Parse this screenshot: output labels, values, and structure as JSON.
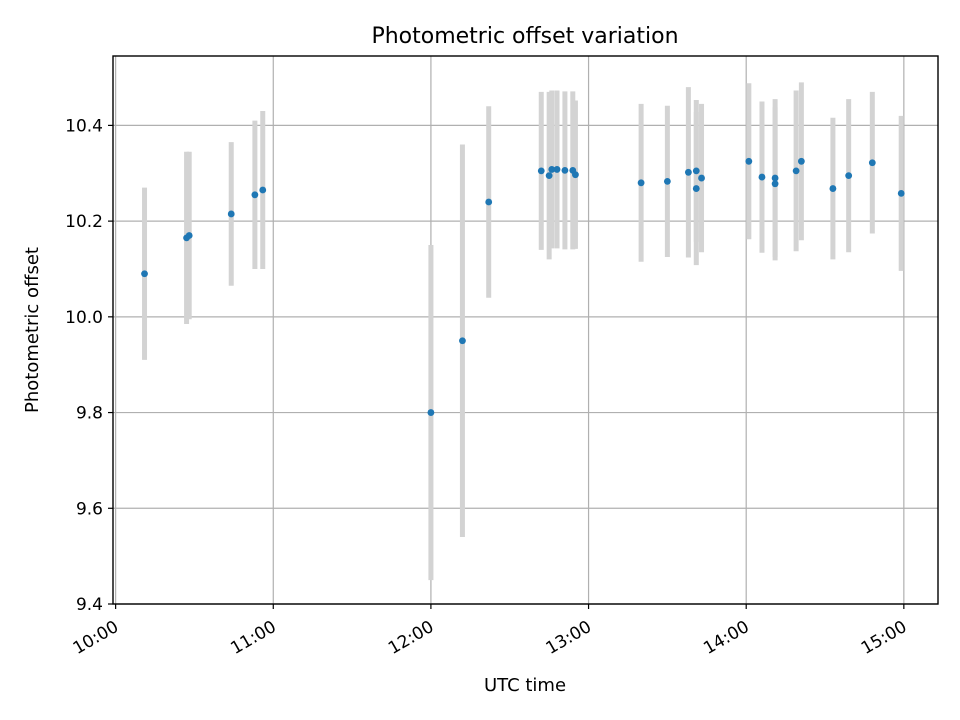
{
  "chart_data": {
    "type": "scatter",
    "title": "Photometric offset variation",
    "xlabel": "UTC time",
    "ylabel": "Photometric offset",
    "xlim": [
      "09:59",
      "15:13"
    ],
    "ylim": [
      9.4,
      10.545
    ],
    "x_ticks": [
      "10:00",
      "11:00",
      "12:00",
      "13:00",
      "14:00",
      "15:00"
    ],
    "y_ticks": [
      9.4,
      9.6,
      9.8,
      10.0,
      10.2,
      10.4
    ],
    "grid": true,
    "legend": "none",
    "colors": {
      "points": "#1f77b4",
      "error_bars": "#d3d3d3",
      "grid": "#b0b0b0"
    },
    "points": [
      {
        "x": "10:11",
        "y": 10.09,
        "err": 0.18
      },
      {
        "x": "10:27",
        "y": 10.165,
        "err": 0.18
      },
      {
        "x": "10:28",
        "y": 10.17,
        "err": 0.175
      },
      {
        "x": "10:44",
        "y": 10.215,
        "err": 0.15
      },
      {
        "x": "10:53",
        "y": 10.255,
        "err": 0.155
      },
      {
        "x": "10:56",
        "y": 10.265,
        "err": 0.165
      },
      {
        "x": "12:00",
        "y": 9.8,
        "err": 0.35
      },
      {
        "x": "12:12",
        "y": 9.95,
        "err": 0.41
      },
      {
        "x": "12:22",
        "y": 10.24,
        "err": 0.2
      },
      {
        "x": "12:42",
        "y": 10.305,
        "err": 0.165
      },
      {
        "x": "12:45",
        "y": 10.295,
        "err": 0.175
      },
      {
        "x": "12:46",
        "y": 10.308,
        "err": 0.165
      },
      {
        "x": "12:48",
        "y": 10.308,
        "err": 0.165
      },
      {
        "x": "12:51",
        "y": 10.306,
        "err": 0.165
      },
      {
        "x": "12:54",
        "y": 10.306,
        "err": 0.165
      },
      {
        "x": "12:55",
        "y": 10.297,
        "err": 0.155
      },
      {
        "x": "13:20",
        "y": 10.28,
        "err": 0.165
      },
      {
        "x": "13:30",
        "y": 10.283,
        "err": 0.158
      },
      {
        "x": "13:38",
        "y": 10.302,
        "err": 0.178
      },
      {
        "x": "13:41",
        "y": 10.305,
        "err": 0.148
      },
      {
        "x": "13:41",
        "y": 10.268,
        "err": 0.16
      },
      {
        "x": "13:43",
        "y": 10.29,
        "err": 0.155
      },
      {
        "x": "14:01",
        "y": 10.325,
        "err": 0.163
      },
      {
        "x": "14:06",
        "y": 10.292,
        "err": 0.158
      },
      {
        "x": "14:11",
        "y": 10.278,
        "err": 0.16
      },
      {
        "x": "14:11",
        "y": 10.29,
        "err": 0.165
      },
      {
        "x": "14:19",
        "y": 10.305,
        "err": 0.168
      },
      {
        "x": "14:21",
        "y": 10.325,
        "err": 0.165
      },
      {
        "x": "14:33",
        "y": 10.268,
        "err": 0.148
      },
      {
        "x": "14:39",
        "y": 10.295,
        "err": 0.16
      },
      {
        "x": "14:48",
        "y": 10.322,
        "err": 0.148
      },
      {
        "x": "14:59",
        "y": 10.258,
        "err": 0.162
      }
    ]
  }
}
